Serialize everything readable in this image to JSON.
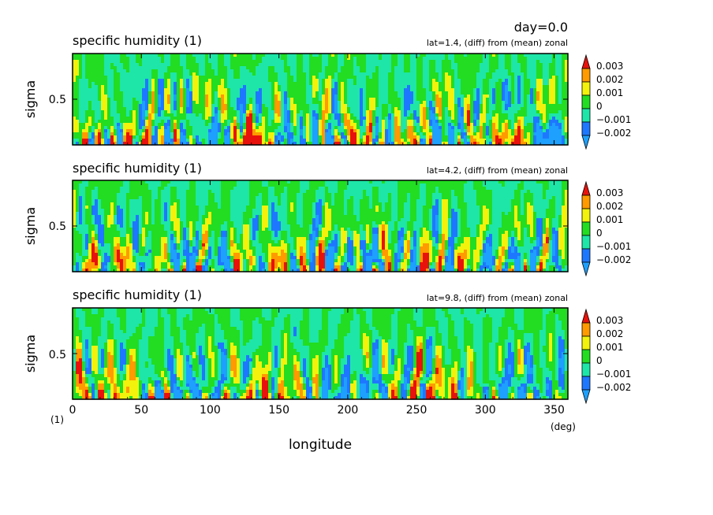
{
  "header": {
    "day_label": "day=0.0"
  },
  "chart_data": [
    {
      "type": "heatmap",
      "title": "specific humidity (1)",
      "subtitle": "lat=1.4, (diff) from (mean) zonal",
      "ylabel": "sigma",
      "y_ticks": [
        "0.5"
      ],
      "xlim": [
        0,
        360
      ],
      "ylim": [
        1.0,
        0.0
      ],
      "color_levels": [
        "0.003",
        "0.002",
        "0.001",
        "0",
        "−0.001",
        "−0.002"
      ],
      "field_description": "Contoured anomaly field, strongest positive values (red, above 0.003) concentrated near sigma 0.7–1.0"
    },
    {
      "type": "heatmap",
      "title": "specific humidity (1)",
      "subtitle": "lat=4.2, (diff) from (mean) zonal",
      "ylabel": "sigma",
      "y_ticks": [
        "0.5"
      ],
      "xlim": [
        0,
        360
      ],
      "ylim": [
        1.0,
        0.0
      ],
      "color_levels": [
        "0.003",
        "0.002",
        "0.001",
        "0",
        "−0.001",
        "−0.002"
      ]
    },
    {
      "type": "heatmap",
      "title": "specific humidity (1)",
      "subtitle": "lat=9.8, (diff) from (mean) zonal",
      "ylabel": "sigma",
      "xlabel": "longitude",
      "x_unit": "(deg)",
      "y_unit": "(1)",
      "x_ticks": [
        "0",
        "50",
        "100",
        "150",
        "200",
        "250",
        "300",
        "350"
      ],
      "y_ticks": [
        "0.5"
      ],
      "xlim": [
        0,
        360
      ],
      "ylim": [
        1.0,
        0.0
      ],
      "color_levels": [
        "0.003",
        "0.002",
        "0.001",
        "0",
        "−0.001",
        "−0.002"
      ]
    }
  ],
  "palette": {
    "above_0_003": "#e8120c",
    "0_002_to_0_003": "#ff9a00",
    "0_001_to_0_002": "#f2f20d",
    "0_to_0_001": "#22dd22",
    "neg_0_001_to_0": "#1ee6a8",
    "neg_0_002_to_neg_0_001": "#1e78ff",
    "below_neg_0_002": "#1ea0ff"
  }
}
